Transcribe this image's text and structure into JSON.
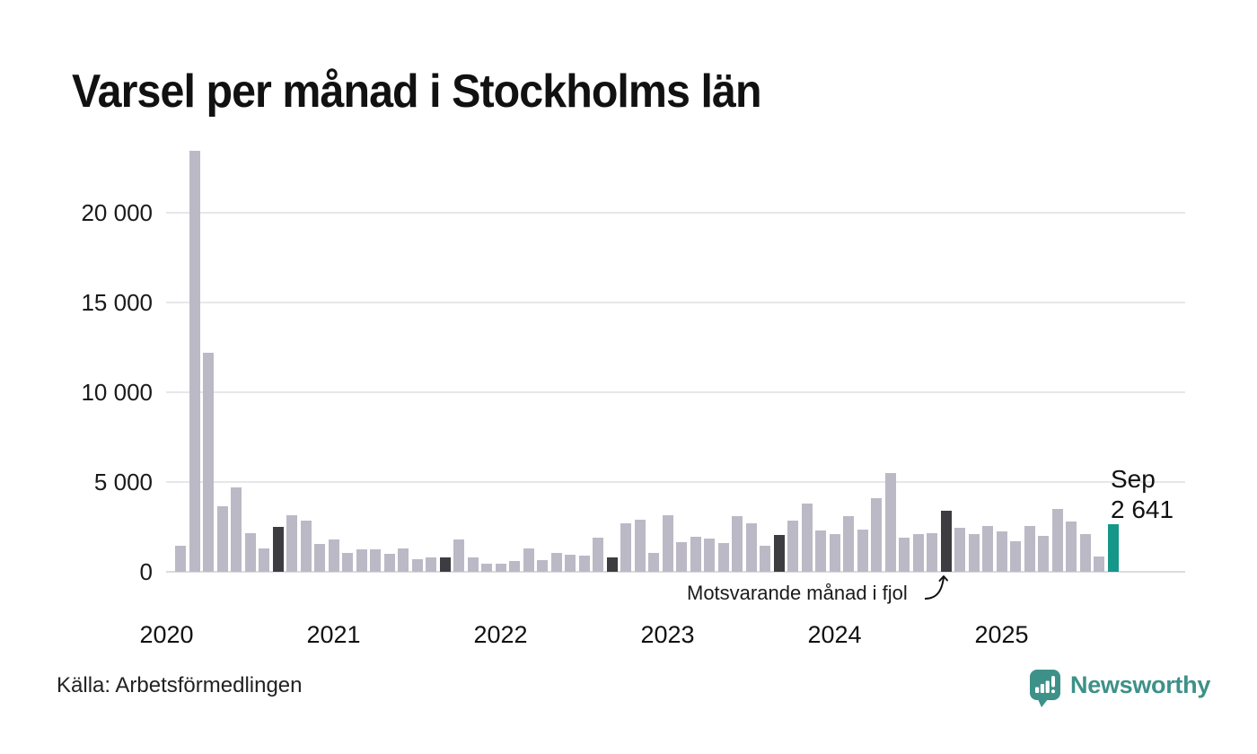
{
  "title": "Varsel per månad i Stockholms län",
  "source": "Källa: Arbetsförmedlingen",
  "logo": {
    "text": "Newsworthy",
    "color": "#3d9188"
  },
  "annotation": {
    "text": "Motsvarande månad i fjol"
  },
  "colors": {
    "bar_default": "#bcb9c6",
    "bar_prior_september": "#3d3c40",
    "bar_current": "#149689",
    "gridline": "#e7e6eb",
    "baseline": "#dbdae0",
    "text": "#111111"
  },
  "chart_data": {
    "type": "bar",
    "title": "Varsel per månad i Stockholms län",
    "ylim": [
      0,
      23600
    ],
    "grid": true,
    "yticks": [
      {
        "v": 0,
        "label": "0"
      },
      {
        "v": 5000,
        "label": "5 000"
      },
      {
        "v": 10000,
        "label": "10 000"
      },
      {
        "v": 15000,
        "label": "15 000"
      },
      {
        "v": 20000,
        "label": "20 000"
      }
    ],
    "year_ticks": [
      {
        "label": "2020",
        "month_index": 0
      },
      {
        "label": "2021",
        "month_index": 12
      },
      {
        "label": "2022",
        "month_index": 24
      },
      {
        "label": "2023",
        "month_index": 36
      },
      {
        "label": "2024",
        "month_index": 48
      },
      {
        "label": "2025",
        "month_index": 60
      }
    ],
    "current_point": {
      "label": "Sep",
      "value_label": "2 641",
      "value": 2641
    },
    "highlight_note": "Motsvarande månad i fjol",
    "months": [
      {
        "m": "feb 2020",
        "v": 1450
      },
      {
        "m": "mar 2020",
        "v": 23450
      },
      {
        "m": "apr 2020",
        "v": 12200
      },
      {
        "m": "maj 2020",
        "v": 3650
      },
      {
        "m": "jun 2020",
        "v": 4700
      },
      {
        "m": "jul 2020",
        "v": 2150
      },
      {
        "m": "aug 2020",
        "v": 1300
      },
      {
        "m": "sep 2020",
        "v": 2500,
        "h": "sep"
      },
      {
        "m": "okt 2020",
        "v": 3150
      },
      {
        "m": "nov 2020",
        "v": 2850
      },
      {
        "m": "dec 2020",
        "v": 1550
      },
      {
        "m": "jan 2021",
        "v": 1800
      },
      {
        "m": "feb 2021",
        "v": 1050
      },
      {
        "m": "mar 2021",
        "v": 1250
      },
      {
        "m": "apr 2021",
        "v": 1250
      },
      {
        "m": "maj 2021",
        "v": 1000
      },
      {
        "m": "jun 2021",
        "v": 1300
      },
      {
        "m": "jul 2021",
        "v": 700
      },
      {
        "m": "aug 2021",
        "v": 800
      },
      {
        "m": "sep 2021",
        "v": 800,
        "h": "sep"
      },
      {
        "m": "okt 2021",
        "v": 1800
      },
      {
        "m": "nov 2021",
        "v": 800
      },
      {
        "m": "dec 2021",
        "v": 450
      },
      {
        "m": "jan 2022",
        "v": 450
      },
      {
        "m": "feb 2022",
        "v": 600
      },
      {
        "m": "mar 2022",
        "v": 1300
      },
      {
        "m": "apr 2022",
        "v": 650
      },
      {
        "m": "maj 2022",
        "v": 1050
      },
      {
        "m": "jun 2022",
        "v": 950
      },
      {
        "m": "jul 2022",
        "v": 880
      },
      {
        "m": "aug 2022",
        "v": 1900
      },
      {
        "m": "sep 2022",
        "v": 800,
        "h": "sep"
      },
      {
        "m": "okt 2022",
        "v": 2700
      },
      {
        "m": "nov 2022",
        "v": 2900
      },
      {
        "m": "dec 2022",
        "v": 1050
      },
      {
        "m": "jan 2023",
        "v": 3150
      },
      {
        "m": "feb 2023",
        "v": 1650
      },
      {
        "m": "mar 2023",
        "v": 1950
      },
      {
        "m": "apr 2023",
        "v": 1850
      },
      {
        "m": "maj 2023",
        "v": 1600
      },
      {
        "m": "jun 2023",
        "v": 3100
      },
      {
        "m": "jul 2023",
        "v": 2700
      },
      {
        "m": "aug 2023",
        "v": 1450
      },
      {
        "m": "sep 2023",
        "v": 2050,
        "h": "sep"
      },
      {
        "m": "okt 2023",
        "v": 2850
      },
      {
        "m": "nov 2023",
        "v": 3800
      },
      {
        "m": "dec 2023",
        "v": 2300
      },
      {
        "m": "jan 2024",
        "v": 2100
      },
      {
        "m": "feb 2024",
        "v": 3100
      },
      {
        "m": "mar 2024",
        "v": 2350
      },
      {
        "m": "apr 2024",
        "v": 4100
      },
      {
        "m": "maj 2024",
        "v": 5500
      },
      {
        "m": "jun 2024",
        "v": 1900
      },
      {
        "m": "jul 2024",
        "v": 2100
      },
      {
        "m": "aug 2024",
        "v": 2150
      },
      {
        "m": "sep 2024",
        "v": 3400,
        "h": "sep"
      },
      {
        "m": "okt 2024",
        "v": 2450
      },
      {
        "m": "nov 2024",
        "v": 2100
      },
      {
        "m": "dec 2024",
        "v": 2550
      },
      {
        "m": "jan 2025",
        "v": 2250
      },
      {
        "m": "feb 2025",
        "v": 1700
      },
      {
        "m": "mar 2025",
        "v": 2550
      },
      {
        "m": "apr 2025",
        "v": 2000
      },
      {
        "m": "maj 2025",
        "v": 3500
      },
      {
        "m": "jun 2025",
        "v": 2800
      },
      {
        "m": "jul 2025",
        "v": 2100
      },
      {
        "m": "aug 2025",
        "v": 830
      },
      {
        "m": "sep 2025",
        "v": 2641,
        "h": "current"
      }
    ]
  }
}
